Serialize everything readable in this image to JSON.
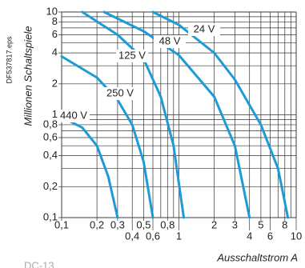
{
  "chart_data": {
    "type": "line",
    "y_label": "Millionen Schaltspiele",
    "x_label": "Ausschaltstrom A",
    "file_label": "DF537817.eps",
    "footer": "DC-13",
    "xscale": "log",
    "yscale": "log",
    "grid": true,
    "xlim": [
      0.1,
      10
    ],
    "ylim": [
      0.1,
      10
    ],
    "xticks": [
      {
        "value": 0.1,
        "label": "0,1"
      },
      {
        "value": 0.2,
        "label": "0,2"
      },
      {
        "value": 0.3,
        "label": "0,3"
      },
      {
        "value": 0.4,
        "label": "0,4"
      },
      {
        "value": 0.5,
        "label": "0,5"
      },
      {
        "value": 0.6,
        "label": "0,6"
      },
      {
        "value": 0.8,
        "label": "0,8"
      },
      1,
      2,
      3,
      4,
      5,
      6,
      8,
      10
    ],
    "yticks": [
      {
        "value": 0.1,
        "label": "0,1"
      },
      {
        "value": 0.2,
        "label": "0,2"
      },
      {
        "value": 0.4,
        "label": "0,4"
      },
      {
        "value": 0.6,
        "label": "0,6"
      },
      {
        "value": 0.8,
        "label": "0,8"
      },
      1,
      2,
      4,
      6,
      8,
      10
    ],
    "xgrid": [
      0.7,
      0.9,
      7,
      9
    ],
    "ygrid": [
      0.3,
      0.5,
      0.7,
      0.9,
      3,
      5,
      7,
      9
    ],
    "series": [
      {
        "name": "24 V",
        "color": "#1e9ad6",
        "x": [
          0.6,
          1,
          2,
          3,
          5,
          7,
          8.5
        ],
        "values": [
          10,
          7.5,
          4,
          2.2,
          0.8,
          0.3,
          0.1
        ]
      },
      {
        "name": "48 V",
        "color": "#1e9ad6",
        "x": [
          0.23,
          0.5,
          1,
          2,
          3,
          4
        ],
        "values": [
          10,
          6.5,
          3.8,
          1.5,
          0.5,
          0.1
        ]
      },
      {
        "name": "125 V",
        "color": "#1e9ad6",
        "x": [
          0.15,
          0.3,
          0.5,
          0.7,
          0.9,
          1.1
        ],
        "values": [
          10,
          6,
          3.5,
          1.5,
          0.5,
          0.1
        ]
      },
      {
        "name": "250 V",
        "color": "#1e9ad6",
        "x": [
          0.1,
          0.2,
          0.3,
          0.4,
          0.5,
          0.6
        ],
        "values": [
          3.7,
          2.3,
          1.4,
          0.8,
          0.35,
          0.1
        ]
      },
      {
        "name": "440 V",
        "color": "#1e9ad6",
        "x": [
          0.1,
          0.15,
          0.2,
          0.25,
          0.3
        ],
        "values": [
          0.95,
          0.75,
          0.5,
          0.25,
          0.1
        ]
      }
    ]
  }
}
